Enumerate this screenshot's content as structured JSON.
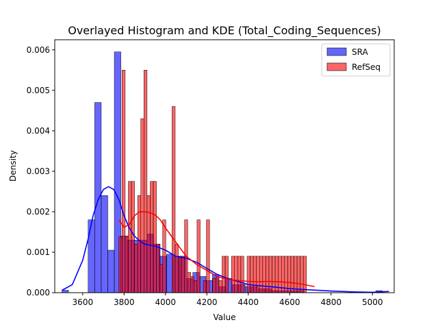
{
  "chart_data": {
    "type": "histogram-kde",
    "title": "Overlayed Histogram and KDE (Total_Coding_Sequences)",
    "xlabel": "Value",
    "ylabel": "Density",
    "xlim": [
      3465,
      5105
    ],
    "ylim": [
      0,
      0.00625
    ],
    "xticks": [
      3600,
      3800,
      4000,
      4200,
      4400,
      4600,
      4800,
      5000
    ],
    "yticks": [
      0,
      0.001,
      0.002,
      0.003,
      0.004,
      0.005,
      0.006
    ],
    "ytick_labels": [
      "0.000",
      "0.001",
      "0.002",
      "0.003",
      "0.004",
      "0.005",
      "0.006"
    ],
    "grid": false,
    "legend_position": "top-right",
    "series": [
      {
        "name": "SRA",
        "color": "#0000ff",
        "bin_start": 3500,
        "bin_width": 31.6,
        "values": [
          6e-05,
          0,
          0,
          0,
          0.0018,
          0.0047,
          0.0024,
          0.00105,
          0.00595,
          0.0014,
          0.0013,
          0.0013,
          0.0013,
          0.00145,
          0.0012,
          0.0009,
          0.00095,
          0.0009,
          0.0009,
          0.00035,
          0.0005,
          0.0004,
          0.0003,
          0.00045,
          0.00015,
          0.00035,
          0.0002,
          0.0002,
          0.00015,
          0.00015,
          0.0001,
          0.0001,
          5e-05,
          5e-05,
          5e-05,
          5e-05,
          5e-05,
          0,
          0,
          0,
          0,
          0,
          0,
          0,
          0,
          0,
          0,
          0,
          5e-05
        ],
        "kde": {
          "x": [
            3500,
            3550,
            3600,
            3625,
            3650,
            3675,
            3700,
            3725,
            3750,
            3775,
            3800,
            3825,
            3850,
            3875,
            3900,
            3950,
            4000,
            4050,
            4100,
            4150,
            4200,
            4250,
            4300,
            4400,
            4500,
            4600,
            4700,
            4800,
            4900,
            5000,
            5080
          ],
          "y": [
            6e-05,
            0.0002,
            0.0008,
            0.0013,
            0.0019,
            0.0023,
            0.00255,
            0.00262,
            0.00255,
            0.0023,
            0.0019,
            0.0016,
            0.0014,
            0.00128,
            0.0012,
            0.00115,
            0.00105,
            0.0009,
            0.00085,
            0.00075,
            0.0006,
            0.00045,
            0.00035,
            0.0002,
            0.00015,
            0.0001,
            7e-05,
            4e-05,
            2e-05,
            1e-05,
            3e-05
          ]
        }
      },
      {
        "name": "RefSeq",
        "color": "#ff0000",
        "bin_start": 3775,
        "bin_width": 15.1,
        "values": [
          0.00138,
          0.0055,
          0.0014,
          0.00275,
          0.00275,
          0.0012,
          0.0024,
          0.0043,
          0.0055,
          0.0024,
          0.00275,
          0.00275,
          0.0012,
          0.0007,
          0.0018,
          0,
          0,
          0.0046,
          0.0012,
          0.0009,
          0.0009,
          0.0018,
          0.0005,
          0.0004,
          0.0003,
          0.0018,
          0,
          0.0003,
          0.0018,
          0,
          0.00035,
          0.0004,
          0.0003,
          0.0009,
          0.0009,
          0,
          0.0009,
          0.0009,
          0.0009,
          0.0009,
          0,
          0.0009,
          0.0009,
          0.0009,
          0.0009,
          0.0009,
          0.0009,
          0.0009,
          0.0009,
          0.0009,
          0.0009,
          0.0009,
          0.0009,
          0.0009,
          0.0009,
          0.0009,
          0.0009,
          0.0009,
          0.0009,
          0.0009
        ],
        "kde": {
          "x": [
            3775,
            3800,
            3825,
            3850,
            3875,
            3900,
            3925,
            3950,
            3975,
            4000,
            4050,
            4100,
            4150,
            4200,
            4250,
            4300,
            4350,
            4400,
            4450,
            4500,
            4550,
            4600,
            4650,
            4700,
            4720
          ],
          "y": [
            0.0018,
            0.00162,
            0.00168,
            0.0019,
            0.002,
            0.002,
            0.00198,
            0.00192,
            0.0018,
            0.0016,
            0.00125,
            0.0009,
            0.0007,
            0.00055,
            0.0004,
            0.00033,
            0.0003,
            0.00028,
            0.00027,
            0.00028,
            0.00027,
            0.00025,
            0.00022,
            0.00017,
            0.00015
          ]
        }
      }
    ]
  }
}
